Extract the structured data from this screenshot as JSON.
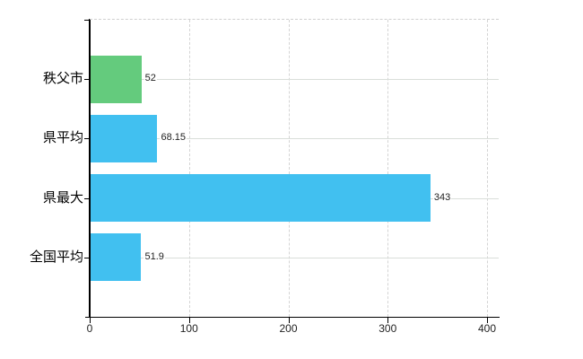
{
  "chart_data": {
    "type": "bar",
    "orientation": "horizontal",
    "title": "",
    "xlabel": "",
    "ylabel": "",
    "categories": [
      "秩父市",
      "県平均",
      "県最大",
      "全国平均"
    ],
    "values": [
      52,
      68.15,
      343,
      51.9
    ],
    "value_labels": [
      "52",
      "68.15",
      "343",
      "51.9"
    ],
    "bar_colors": [
      "#64cb7d",
      "#41c0f0",
      "#41c0f0",
      "#41c0f0"
    ],
    "xlim": [
      0,
      400
    ],
    "x_tick_labels": [
      "0",
      "100",
      "200",
      "300",
      "400"
    ],
    "x_tick_values": [
      0,
      100,
      200,
      300,
      400
    ],
    "grid": "on",
    "legend": "none",
    "colors": {
      "green_bar": "#64cb7d",
      "blue_bar": "#41c0f0",
      "axis": "#000000",
      "grid_horizontal": "#d9ded9",
      "grid_vertical": "#d4d4d4",
      "tick_label": "#222222",
      "value_label": "#222222",
      "background": "#ffffff"
    }
  }
}
